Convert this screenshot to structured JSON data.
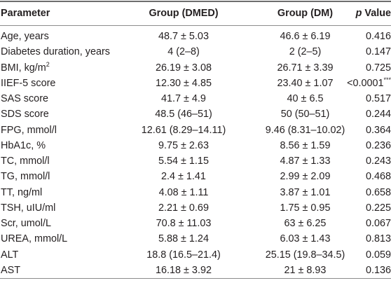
{
  "table": {
    "headers": {
      "parameter": "Parameter",
      "group_dmed": "Group (DMED)",
      "group_dm": "Group (DM)",
      "p_italic": "p",
      "p_rest": " Value"
    },
    "rows": [
      {
        "parameter": "Age, years",
        "dmed": "48.7 ± 5.03",
        "dm": "46.6 ± 6.19",
        "p": "0.416",
        "sup": ""
      },
      {
        "parameter": "Diabetes duration, years",
        "dmed": "4 (2–8)",
        "dm": "2 (2–5)",
        "p": "0.147",
        "sup": ""
      },
      {
        "parameter": "BMI, kg/m",
        "param_sup": "2",
        "dmed": "26.19 ± 3.08",
        "dm": "26.71 ± 3.39",
        "p": "0.725",
        "sup": ""
      },
      {
        "parameter": "IIEF-5 score",
        "dmed": "12.30 ± 4.85",
        "dm": "23.40 ± 1.07",
        "p": "<0.0001",
        "sup": "***"
      },
      {
        "parameter": "SAS score",
        "dmed": "41.7 ± 4.9",
        "dm": "40 ± 6.5",
        "p": "0.517",
        "sup": ""
      },
      {
        "parameter": "SDS score",
        "dmed": "48.5 (46–51)",
        "dm": "50 (50–51)",
        "p": "0.244",
        "sup": ""
      },
      {
        "parameter": "FPG, mmol/l",
        "dmed": "12.61 (8.29–14.11)",
        "dm": "9.46 (8.31–10.02)",
        "p": "0.364",
        "sup": ""
      },
      {
        "parameter": "HbA1c, %",
        "dmed": "9.75 ± 2.63",
        "dm": "8.56 ± 1.59",
        "p": "0.236",
        "sup": ""
      },
      {
        "parameter": "TC, mmol/l",
        "dmed": "5.54 ± 1.15",
        "dm": "4.87 ± 1.33",
        "p": "0.243",
        "sup": ""
      },
      {
        "parameter": "TG, mmol/l",
        "dmed": "2.4 ± 1.41",
        "dm": "2.99 ± 2.09",
        "p": "0.468",
        "sup": ""
      },
      {
        "parameter": "TT, ng/ml",
        "dmed": "4.08 ± 1.11",
        "dm": "3.87 ± 1.01",
        "p": "0.658",
        "sup": ""
      },
      {
        "parameter": "TSH, uIU/ml",
        "dmed": "2.21 ± 0.69",
        "dm": "1.75 ± 0.95",
        "p": "0.225",
        "sup": ""
      },
      {
        "parameter": "Scr, umol/L",
        "dmed": "70.8 ± 11.03",
        "dm": "63 ± 6.25",
        "p": "0.067",
        "sup": ""
      },
      {
        "parameter": "UREA, mmol/L",
        "dmed": "5.88 ± 1.24",
        "dm": "6.03 ± 1.43",
        "p": "0.813",
        "sup": ""
      },
      {
        "parameter": "ALT",
        "dmed": "18.8 (16.5–21.4)",
        "dm": "25.15 (19.8–34.5)",
        "p": "0.059",
        "sup": ""
      },
      {
        "parameter": "AST",
        "dmed": "16.18 ± 3.92",
        "dm": "21 ± 8.93",
        "p": "0.136",
        "sup": ""
      }
    ]
  }
}
